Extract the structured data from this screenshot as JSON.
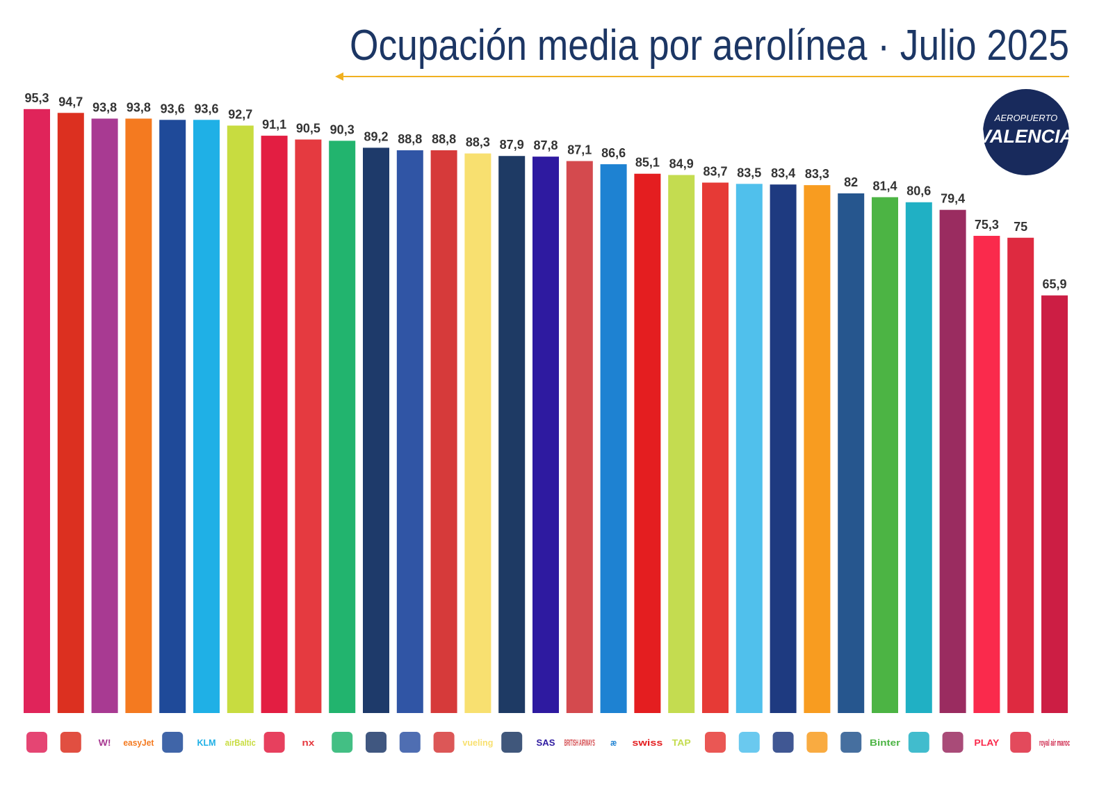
{
  "chart_data": {
    "type": "bar",
    "title": "Ocupación media por aerolínea · Julio 2025",
    "badge": [
      "AEROPUERTO",
      "VALENCIA"
    ],
    "categories": [
      null,
      null,
      "W!",
      "easyJet",
      null,
      "KLM",
      "airBaltic",
      null,
      "nx",
      null,
      null,
      null,
      null,
      "vueling",
      null,
      "SAS",
      "BRITISH AIRWAYS",
      "æ",
      "swiss",
      "TAP",
      null,
      null,
      null,
      null,
      null,
      "Binter",
      null,
      null,
      "PLAY",
      null,
      "royal air maroc"
    ],
    "values": [
      95.3,
      94.7,
      93.8,
      93.8,
      93.6,
      93.6,
      92.7,
      91.1,
      90.5,
      90.3,
      89.2,
      88.8,
      88.8,
      88.3,
      87.9,
      87.8,
      87.1,
      86.6,
      85.1,
      84.9,
      83.7,
      83.5,
      83.4,
      83.3,
      82,
      81.4,
      80.6,
      79.4,
      75.3,
      75,
      65.9
    ],
    "value_labels": [
      "95,3",
      "94,7",
      "93,8",
      "93,8",
      "93,6",
      "93,6",
      "92,7",
      "91,1",
      "90,5",
      "90,3",
      "89,2",
      "88,8",
      "88,8",
      "88,3",
      "87,9",
      "87,8",
      "87,1",
      "86,6",
      "85,1",
      "84,9",
      "83,7",
      "83,5",
      "83,4",
      "83,3",
      "82",
      "81,4",
      "80,6",
      "79,4",
      "75,3",
      "75",
      "65,9"
    ],
    "colors": [
      "#e0245a",
      "#dc3020",
      "#a83a92",
      "#f47a20",
      "#1f4a99",
      "#1fb0e6",
      "#c8dc40",
      "#e31e42",
      "#e53a40",
      "#22b46e",
      "#1e3a6a",
      "#3055a5",
      "#d63a3a",
      "#f8e070",
      "#1e3a64",
      "#2e1aa0",
      "#d44a4e",
      "#1e82d2",
      "#e41e20",
      "#c4dc50",
      "#e63a36",
      "#50c0ec",
      "#1e3a80",
      "#f89c20",
      "#26568e",
      "#4cb444",
      "#20b0c4",
      "#9a2c60",
      "#fa2a4c",
      "#de2a40",
      "#cc1e44"
    ],
    "ylim": [
      0,
      100
    ]
  }
}
